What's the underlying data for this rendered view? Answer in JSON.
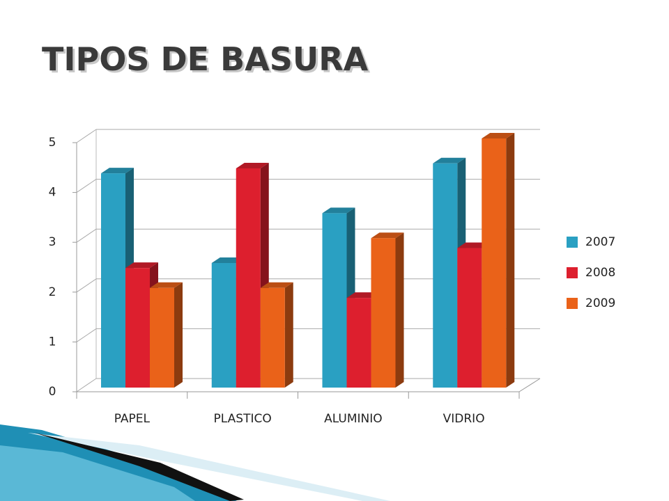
{
  "chart_data": {
    "type": "bar",
    "title": "TIPOS DE BASURA",
    "categories": [
      "PAPEL",
      "PLASTICO",
      "ALUMINIO",
      "VIDRIO"
    ],
    "series": [
      {
        "name": "2007",
        "color": "#2aa0c2",
        "values": [
          4.3,
          2.5,
          3.5,
          4.5
        ]
      },
      {
        "name": "2008",
        "color": "#dd1f2e",
        "values": [
          2.4,
          4.4,
          1.8,
          2.8
        ]
      },
      {
        "name": "2009",
        "color": "#ea6219",
        "values": [
          2.0,
          2.0,
          3.0,
          5.0
        ]
      }
    ],
    "ylim": [
      0,
      5
    ],
    "yticks": [
      0,
      1,
      2,
      3,
      4,
      5
    ],
    "grid": true,
    "legend": "right"
  }
}
